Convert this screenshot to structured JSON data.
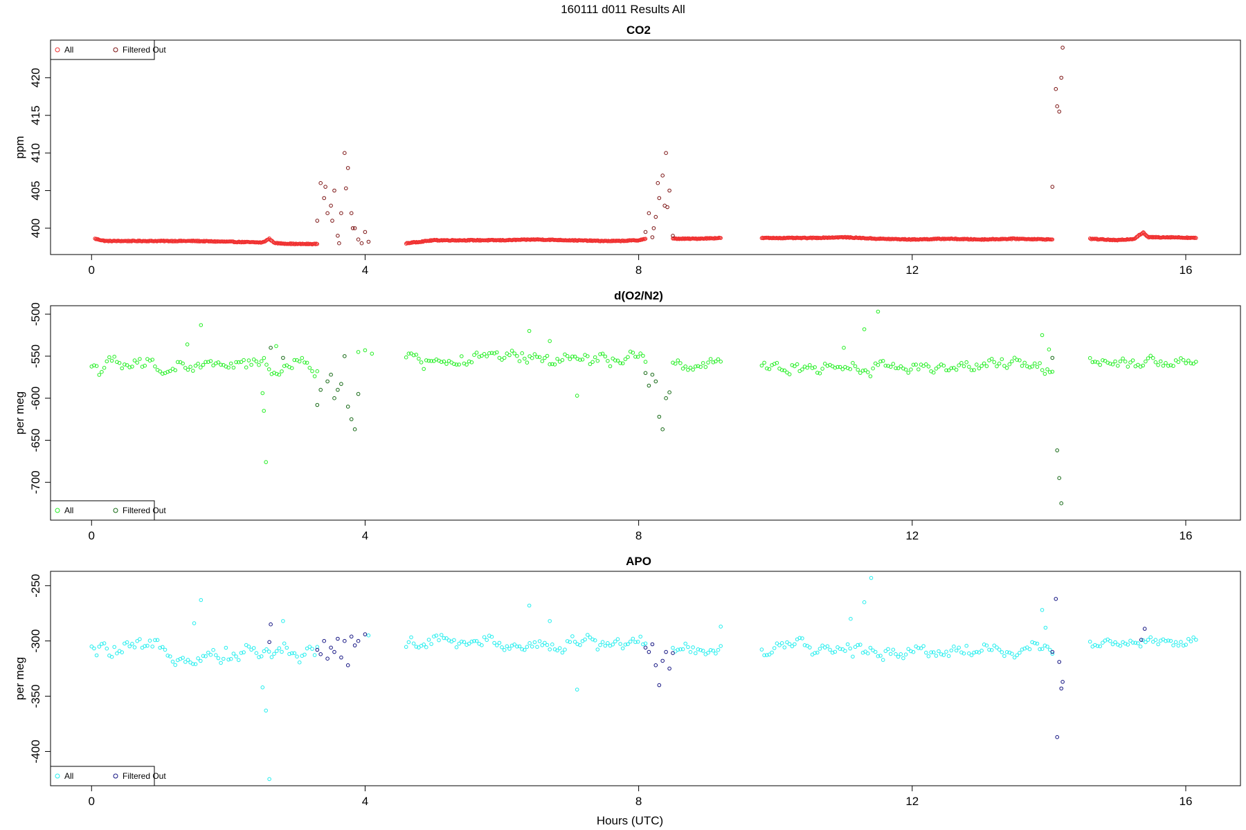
{
  "figure": {
    "title": "160111   d011   Results All",
    "xlabel": "Hours (UTC)"
  },
  "chart_data": [
    {
      "type": "scatter",
      "title": "CO2",
      "ylabel": "ppm",
      "xlim": [
        -0.6,
        16.8
      ],
      "ylim": [
        396.5,
        425
      ],
      "xticks": [
        0,
        4,
        8,
        12,
        16
      ],
      "yticks": [
        400,
        405,
        410,
        415,
        420
      ],
      "legend_position": "top-left",
      "legend": [
        {
          "label": "All",
          "color": "#f03030"
        },
        {
          "label": "Filtered Out",
          "color": "#7a1010"
        }
      ],
      "series": [
        {
          "name": "All",
          "color": "#f03030",
          "segments": [
            {
              "x": [
                0.05,
                0.2,
                0.8,
                1.5,
                2.0,
                2.5,
                2.6,
                2.65,
                2.7,
                3.0,
                3.3
              ],
              "y": [
                398.6,
                398.3,
                398.3,
                398.3,
                398.2,
                398.1,
                398.6,
                398.2,
                398.0,
                397.9,
                397.9
              ]
            },
            {
              "x": [
                4.6,
                4.8,
                5.0,
                5.5,
                6.0,
                6.5,
                7.0,
                7.5,
                7.7,
                8.0,
                8.1
              ],
              "y": [
                398.0,
                398.2,
                398.4,
                398.4,
                398.4,
                398.5,
                398.4,
                398.3,
                398.3,
                398.4,
                398.6
              ]
            },
            {
              "x": [
                8.5,
                8.8,
                9.2
              ],
              "y": [
                398.6,
                398.6,
                398.7
              ]
            },
            {
              "x": [
                9.8,
                10.5,
                11.0,
                11.5,
                12.0,
                12.5,
                13.0,
                13.5,
                14.05
              ],
              "y": [
                398.7,
                398.7,
                398.8,
                398.6,
                398.5,
                398.6,
                398.5,
                398.6,
                398.5
              ]
            },
            {
              "x": [
                14.6,
                15.0,
                15.25,
                15.32,
                15.38,
                15.45,
                15.6,
                15.8,
                16.15
              ],
              "y": [
                398.6,
                398.4,
                398.6,
                399.1,
                399.4,
                398.8,
                398.8,
                398.8,
                398.7
              ]
            }
          ]
        },
        {
          "name": "Filtered Out",
          "color": "#7a1010",
          "x": [
            3.3,
            3.35,
            3.4,
            3.45,
            3.5,
            3.55,
            3.6,
            3.65,
            3.7,
            3.75,
            3.8,
            3.85,
            3.9,
            4.0,
            4.05,
            3.42,
            3.52,
            3.62,
            3.72,
            3.82,
            3.95,
            8.1,
            8.15,
            8.2,
            8.25,
            8.3,
            8.35,
            8.4,
            8.45,
            8.5,
            8.22,
            8.28,
            8.38,
            8.42,
            14.05,
            14.1,
            14.12,
            14.15,
            14.18,
            14.2
          ],
          "y": [
            401,
            406,
            404,
            402,
            403,
            405,
            399,
            402,
            410,
            408,
            402,
            400,
            398.5,
            399.5,
            398.2,
            405.5,
            401,
            398,
            405.3,
            400,
            398,
            399.5,
            402,
            398.8,
            401.5,
            404,
            407,
            410,
            405,
            399,
            400,
            406,
            403,
            402.8,
            405.5,
            418.5,
            416.2,
            415.5,
            420,
            424
          ]
        }
      ]
    },
    {
      "type": "scatter",
      "title": "d(O2/N2)",
      "ylabel": "per meg",
      "xlim": [
        -0.6,
        16.8
      ],
      "ylim": [
        -745,
        -490
      ],
      "xticks": [
        0,
        4,
        8,
        12,
        16
      ],
      "yticks": [
        -700,
        -650,
        -600,
        -550,
        -500
      ],
      "legend_position": "bottom-left",
      "legend": [
        {
          "label": "All",
          "color": "#22ee22"
        },
        {
          "label": "Filtered Out",
          "color": "#116611"
        }
      ],
      "series": [
        {
          "name": "All",
          "color": "#22ee22",
          "segments": [
            {
              "x": [
                0.0,
                3.3
              ],
              "y_center": -562,
              "y_spread": 14
            },
            {
              "x": [
                4.6,
                8.1
              ],
              "y_center": -555,
              "y_spread": 14
            },
            {
              "x": [
                8.5,
                9.2
              ],
              "y_center": -562,
              "y_spread": 10
            },
            {
              "x": [
                9.8,
                14.05
              ],
              "y_center": -562,
              "y_spread": 12
            },
            {
              "x": [
                14.6,
                16.15
              ],
              "y_center": -555,
              "y_spread": 10
            }
          ],
          "outliers_x": [
            1.6,
            1.4,
            2.5,
            2.52,
            2.55,
            2.7,
            6.4,
            6.7,
            7.1,
            11.3,
            11.5,
            11.0,
            13.9,
            14.0,
            3.9,
            4.0,
            4.1
          ],
          "outliers_y": [
            -513,
            -536,
            -594,
            -615,
            -676,
            -538,
            -520,
            -532,
            -597,
            -518,
            -497,
            -540,
            -525,
            -542,
            -545,
            -543,
            -547
          ]
        },
        {
          "name": "Filtered Out",
          "color": "#116611",
          "x": [
            3.3,
            3.35,
            3.45,
            3.5,
            3.55,
            3.6,
            3.65,
            3.7,
            3.75,
            3.8,
            3.85,
            3.9,
            2.62,
            2.8,
            8.1,
            8.15,
            8.2,
            8.25,
            8.3,
            8.35,
            8.4,
            8.45,
            14.05,
            14.12,
            14.15,
            14.18
          ],
          "y": [
            -608,
            -590,
            -580,
            -572,
            -600,
            -590,
            -583,
            -550,
            -610,
            -625,
            -637,
            -595,
            -540,
            -552,
            -570,
            -585,
            -572,
            -580,
            -622,
            -637,
            -600,
            -593,
            -552,
            -662,
            -695,
            -725
          ]
        }
      ]
    },
    {
      "type": "scatter",
      "title": "APO",
      "ylabel": "per meg",
      "xlim": [
        -0.6,
        16.8
      ],
      "ylim": [
        -431,
        -237
      ],
      "xticks": [
        0,
        4,
        8,
        12,
        16
      ],
      "yticks": [
        -400,
        -350,
        -300,
        -250
      ],
      "legend_position": "bottom-left",
      "legend": [
        {
          "label": "All",
          "color": "#22eeee"
        },
        {
          "label": "Filtered Out",
          "color": "#101080"
        }
      ],
      "series": [
        {
          "name": "All",
          "color": "#22eeee",
          "segments": [
            {
              "x": [
                0.0,
                3.3
              ],
              "y_center": -310,
              "y_spread": 12
            },
            {
              "x": [
                4.6,
                8.1
              ],
              "y_center": -302,
              "y_spread": 10
            },
            {
              "x": [
                8.5,
                9.2
              ],
              "y_center": -307,
              "y_spread": 8
            },
            {
              "x": [
                9.8,
                14.05
              ],
              "y_center": -308,
              "y_spread": 10
            },
            {
              "x": [
                14.6,
                16.15
              ],
              "y_center": -300,
              "y_spread": 8
            }
          ],
          "outliers_x": [
            1.6,
            1.5,
            2.5,
            2.55,
            2.6,
            2.8,
            6.4,
            6.7,
            7.1,
            11.3,
            11.4,
            11.1,
            13.9,
            13.95,
            9.2,
            4.05
          ],
          "outliers_y": [
            -263,
            -284,
            -342,
            -363,
            -425,
            -282,
            -268,
            -282,
            -344,
            -265,
            -243,
            -280,
            -272,
            -288,
            -287,
            -295
          ]
        },
        {
          "name": "Filtered Out",
          "color": "#101080",
          "x": [
            2.6,
            2.62,
            3.3,
            3.35,
            3.4,
            3.45,
            3.5,
            3.55,
            3.6,
            3.65,
            3.7,
            3.75,
            3.8,
            3.85,
            3.9,
            4.0,
            8.1,
            8.15,
            8.2,
            8.25,
            8.3,
            8.35,
            8.4,
            8.45,
            8.5,
            14.05,
            14.1,
            14.12,
            14.15,
            14.18,
            14.2,
            15.35,
            15.4
          ],
          "y": [
            -301,
            -285,
            -308,
            -312,
            -300,
            -316,
            -306,
            -310,
            -298,
            -315,
            -300,
            -322,
            -296,
            -304,
            -300,
            -294,
            -306,
            -310,
            -303,
            -322,
            -340,
            -318,
            -310,
            -325,
            -311,
            -310,
            -262,
            -387,
            -319,
            -343,
            -337,
            -299,
            -289
          ]
        }
      ]
    }
  ]
}
